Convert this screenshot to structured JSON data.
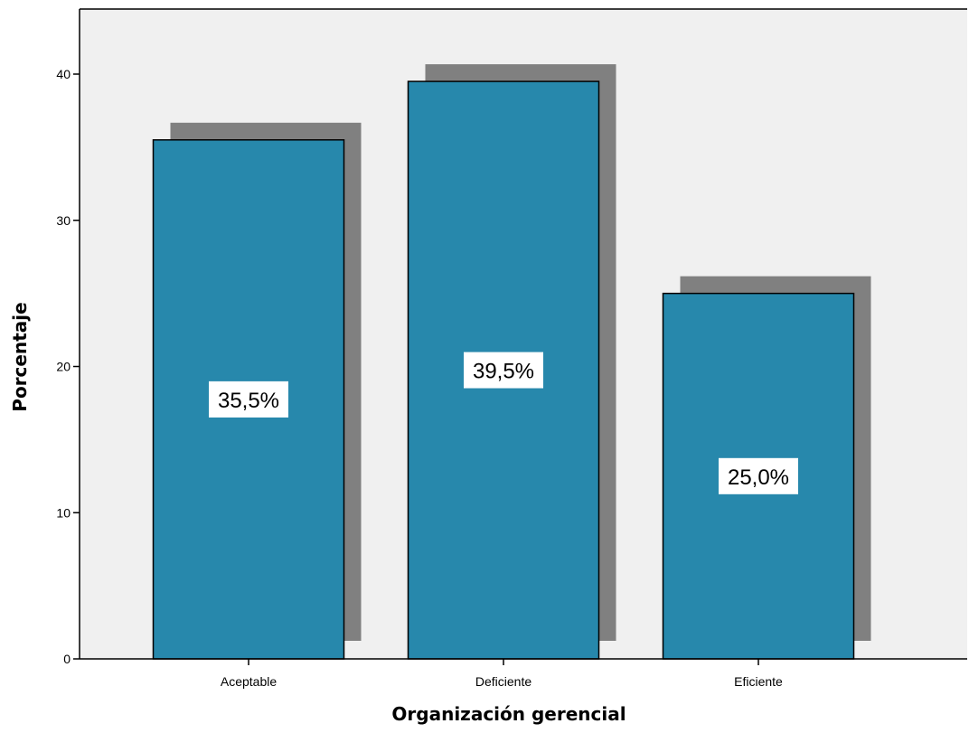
{
  "chart_data": {
    "type": "bar",
    "categories": [
      "Aceptable",
      "Deficiente",
      "Eficiente"
    ],
    "values": [
      35.5,
      39.5,
      25.0
    ],
    "data_labels": [
      "35,5%",
      "39,5%",
      "25,0%"
    ],
    "title": "",
    "xlabel": "Organización gerencial",
    "ylabel": "Porcentaje",
    "ylim": [
      0,
      44
    ],
    "yticks": [
      0,
      10,
      20,
      30,
      40
    ],
    "grid": false,
    "bar_style": "3d-shadow",
    "colors": {
      "bar_fill": "#2788AC",
      "bar_shadow": "#808080",
      "bar_outline": "#000000",
      "plot_background": "#F0F0F0",
      "label_background": "#FFFFFF"
    }
  }
}
